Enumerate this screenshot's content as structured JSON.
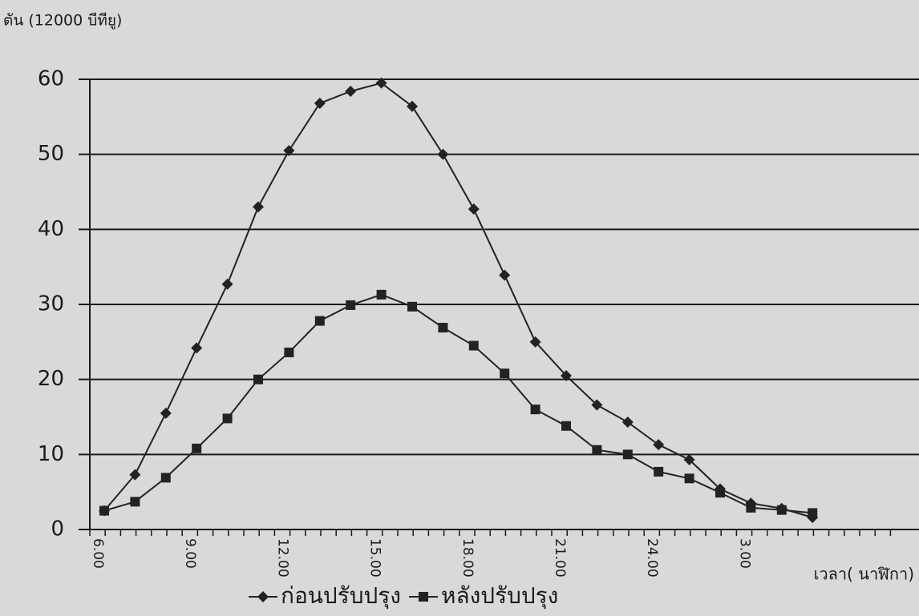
{
  "chart_data": {
    "type": "line",
    "y_axis_label": "ตัน  (12000 บีทียู)",
    "x_axis_label": "เวลา( นาฬิกา)",
    "categories": [
      "6.00",
      null,
      null,
      "9.00",
      null,
      null,
      "12.00",
      null,
      null,
      "15.00",
      null,
      null,
      "18.00",
      null,
      null,
      "21.00",
      null,
      null,
      "24.00",
      null,
      null,
      "3.00",
      null,
      null
    ],
    "series": [
      {
        "name": "ก่อนปรับปรุง",
        "color": "#222222",
        "marker": "diamond",
        "values": [
          2.5,
          7.3,
          15.5,
          24.2,
          32.7,
          43,
          50.5,
          56.8,
          58.4,
          59.5,
          56.4,
          50,
          42.7,
          33.9,
          25,
          20.5,
          16.6,
          14.3,
          11.3,
          9.3,
          5.4,
          3.5,
          2.8,
          1.6
        ]
      },
      {
        "name": "หลังปรับปรุง",
        "color": "#222222",
        "marker": "square",
        "values": [
          2.5,
          3.7,
          6.9,
          10.8,
          14.8,
          20,
          23.6,
          27.8,
          29.9,
          31.3,
          29.7,
          26.9,
          24.5,
          20.8,
          16,
          13.8,
          10.6,
          10,
          7.7,
          6.8,
          4.9,
          2.9,
          2.6,
          2.2
        ]
      }
    ],
    "ylim": [
      0,
      60
    ],
    "yticks": [
      0,
      10,
      20,
      30,
      40,
      50,
      60
    ],
    "grid": true
  }
}
